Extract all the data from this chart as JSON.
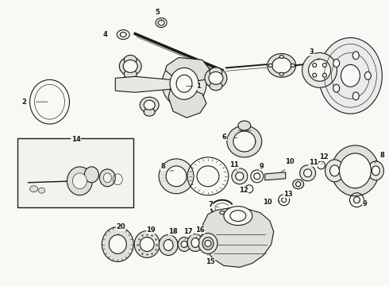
{
  "bg_color": "#f8f8f4",
  "line_color": "#1a1a1a",
  "fig_width": 4.9,
  "fig_height": 3.6,
  "dpi": 100,
  "label_fs": 6.0,
  "lw_main": 0.8,
  "lw_thick": 1.4,
  "lw_thin": 0.45
}
